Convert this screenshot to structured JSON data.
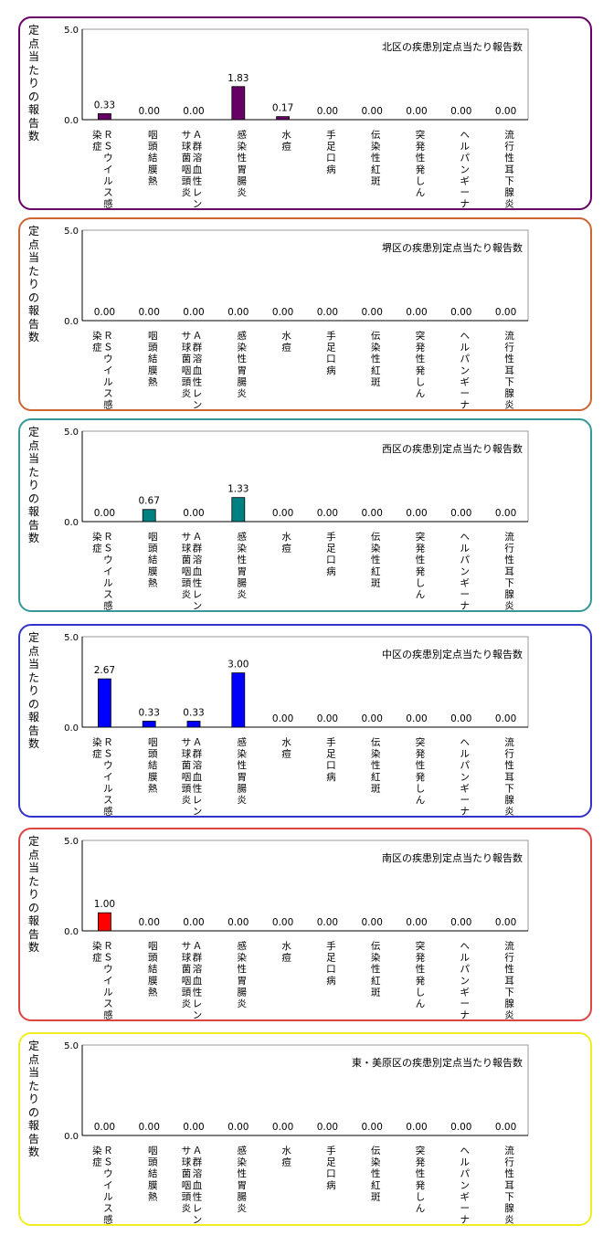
{
  "chart_data": [
    {
      "type": "bar",
      "title": "北区の疾患別定点当たり報告数",
      "ylabel": "定点当たりの報告数",
      "ylim": [
        0,
        5
      ],
      "yticks": [
        "5.0",
        "0.0"
      ],
      "grid": false,
      "bar_color": "#660066",
      "border_color": "#660066",
      "categories": [
        "ＲＳウイルス感染症",
        "咽頭結膜熱",
        "Ａ群溶血性レンサ球菌咽頭炎",
        "感染性胃腸炎",
        "水痘",
        "手足口病",
        "伝染性紅斑",
        "突発性発しん",
        "ヘルパンギーナ",
        "流行性耳下腺炎"
      ],
      "values": [
        0.33,
        0.0,
        0.0,
        1.83,
        0.17,
        0.0,
        0.0,
        0.0,
        0.0,
        0.0
      ],
      "value_labels": [
        "0.33",
        "0.00",
        "0.00",
        "1.83",
        "0.17",
        "0.00",
        "0.00",
        "0.00",
        "0.00",
        "0.00"
      ]
    },
    {
      "type": "bar",
      "title": "堺区の疾患別定点当たり報告数",
      "ylabel": "定点当たりの報告数",
      "ylim": [
        0,
        5
      ],
      "yticks": [
        "5.0",
        "0.0"
      ],
      "grid": false,
      "bar_color": "#cc6633",
      "border_color": "#cc6633",
      "categories": [
        "ＲＳウイルス感染症",
        "咽頭結膜熱",
        "Ａ群溶血性レンサ球菌咽頭炎",
        "感染性胃腸炎",
        "水痘",
        "手足口病",
        "伝染性紅斑",
        "突発性発しん",
        "ヘルパンギーナ",
        "流行性耳下腺炎"
      ],
      "values": [
        0.0,
        0.0,
        0.0,
        0.0,
        0.0,
        0.0,
        0.0,
        0.0,
        0.0,
        0.0
      ],
      "value_labels": [
        "0.00",
        "0.00",
        "0.00",
        "0.00",
        "0.00",
        "0.00",
        "0.00",
        "0.00",
        "0.00",
        "0.00"
      ]
    },
    {
      "type": "bar",
      "title": "西区の疾患別定点当たり報告数",
      "ylabel": "定点当たりの報告数",
      "ylim": [
        0,
        5
      ],
      "yticks": [
        "5.0",
        "0.0"
      ],
      "grid": false,
      "bar_color": "#008080",
      "border_color": "#339999",
      "categories": [
        "ＲＳウイルス感染症",
        "咽頭結膜熱",
        "Ａ群溶血性レンサ球菌咽頭炎",
        "感染性胃腸炎",
        "水痘",
        "手足口病",
        "伝染性紅斑",
        "突発性発しん",
        "ヘルパンギーナ",
        "流行性耳下腺炎"
      ],
      "values": [
        0.0,
        0.67,
        0.0,
        1.33,
        0.0,
        0.0,
        0.0,
        0.0,
        0.0,
        0.0
      ],
      "value_labels": [
        "0.00",
        "0.67",
        "0.00",
        "1.33",
        "0.00",
        "0.00",
        "0.00",
        "0.00",
        "0.00",
        "0.00"
      ]
    },
    {
      "type": "bar",
      "title": "中区の疾患別定点当たり報告数",
      "ylabel": "定点当たりの報告数",
      "ylim": [
        0,
        5
      ],
      "yticks": [
        "5.0",
        "0.0"
      ],
      "grid": false,
      "bar_color": "#0000ff",
      "border_color": "#3333cc",
      "categories": [
        "ＲＳウイルス感染症",
        "咽頭結膜熱",
        "Ａ群溶血性レンサ球菌咽頭炎",
        "感染性胃腸炎",
        "水痘",
        "手足口病",
        "伝染性紅斑",
        "突発性発しん",
        "ヘルパンギーナ",
        "流行性耳下腺炎"
      ],
      "values": [
        2.67,
        0.33,
        0.33,
        3.0,
        0.0,
        0.0,
        0.0,
        0.0,
        0.0,
        0.0
      ],
      "value_labels": [
        "2.67",
        "0.33",
        "0.33",
        "3.00",
        "0.00",
        "0.00",
        "0.00",
        "0.00",
        "0.00",
        "0.00"
      ]
    },
    {
      "type": "bar",
      "title": "南区の疾患別定点当たり報告数",
      "ylabel": "定点当たりの報告数",
      "ylim": [
        0,
        5
      ],
      "yticks": [
        "5.0",
        "0.0"
      ],
      "grid": false,
      "bar_color": "#ff0000",
      "border_color": "#dd4444",
      "categories": [
        "ＲＳウイルス感染症",
        "咽頭結膜熱",
        "Ａ群溶血性レンサ球菌咽頭炎",
        "感染性胃腸炎",
        "水痘",
        "手足口病",
        "伝染性紅斑",
        "突発性発しん",
        "ヘルパンギーナ",
        "流行性耳下腺炎"
      ],
      "values": [
        1.0,
        0.0,
        0.0,
        0.0,
        0.0,
        0.0,
        0.0,
        0.0,
        0.0,
        0.0
      ],
      "value_labels": [
        "1.00",
        "0.00",
        "0.00",
        "0.00",
        "0.00",
        "0.00",
        "0.00",
        "0.00",
        "0.00",
        "0.00"
      ]
    },
    {
      "type": "bar",
      "title": "東・美原区の疾患別定点当たり報告数",
      "ylabel": "定点当たりの報告数",
      "ylim": [
        0,
        5
      ],
      "yticks": [
        "5.0",
        "0.0"
      ],
      "grid": false,
      "bar_color": "#cccc00",
      "border_color": "#eeee22",
      "categories": [
        "ＲＳウイルス感染症",
        "咽頭結膜熱",
        "Ａ群溶血性レンサ球菌咽頭炎",
        "感染性胃腸炎",
        "水痘",
        "手足口病",
        "伝染性紅斑",
        "突発性発しん",
        "ヘルパンギーナ",
        "流行性耳下腺炎"
      ],
      "values": [
        0.0,
        0.0,
        0.0,
        0.0,
        0.0,
        0.0,
        0.0,
        0.0,
        0.0,
        0.0
      ],
      "value_labels": [
        "0.00",
        "0.00",
        "0.00",
        "0.00",
        "0.00",
        "0.00",
        "0.00",
        "0.00",
        "0.00",
        "0.00"
      ]
    }
  ]
}
